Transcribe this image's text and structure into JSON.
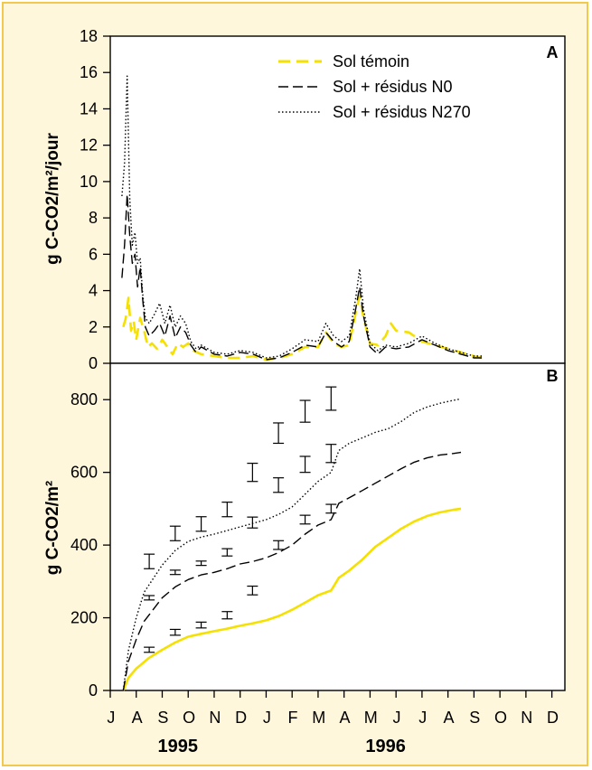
{
  "chart_data": [
    {
      "type": "line",
      "panel_label": "A",
      "ylabel": "g C-CO2/m²/jour",
      "ylim": [
        0,
        18
      ],
      "yticks": [
        0,
        2,
        4,
        6,
        8,
        10,
        12,
        14,
        16,
        18
      ],
      "legend": {
        "placement": "top-right"
      },
      "series": [
        {
          "name": "Sol témoin",
          "color": "#f5e000",
          "style": "dashed",
          "points": [
            [
              0.5,
              2.0
            ],
            [
              0.6,
              2.5
            ],
            [
              0.7,
              3.6
            ],
            [
              0.8,
              1.8
            ],
            [
              0.9,
              2.3
            ],
            [
              1.0,
              1.3
            ],
            [
              1.15,
              2.5
            ],
            [
              1.3,
              1.8
            ],
            [
              1.45,
              0.9
            ],
            [
              1.6,
              1.1
            ],
            [
              1.8,
              0.8
            ],
            [
              2.0,
              1.3
            ],
            [
              2.2,
              0.9
            ],
            [
              2.4,
              0.5
            ],
            [
              2.6,
              1.1
            ],
            [
              2.8,
              0.9
            ],
            [
              3.0,
              1.1
            ],
            [
              3.2,
              0.7
            ],
            [
              3.5,
              0.5
            ],
            [
              4.0,
              0.4
            ],
            [
              4.5,
              0.3
            ],
            [
              5.0,
              0.3
            ],
            [
              5.5,
              0.4
            ],
            [
              6.0,
              0.2
            ],
            [
              6.5,
              0.3
            ],
            [
              7.0,
              0.5
            ],
            [
              7.5,
              0.9
            ],
            [
              8.0,
              0.9
            ],
            [
              8.3,
              1.7
            ],
            [
              8.6,
              1.1
            ],
            [
              8.9,
              0.9
            ],
            [
              9.2,
              1.0
            ],
            [
              9.45,
              2.8
            ],
            [
              9.6,
              3.7
            ],
            [
              9.75,
              2.5
            ],
            [
              10.0,
              1.1
            ],
            [
              10.3,
              1.0
            ],
            [
              10.6,
              1.5
            ],
            [
              10.8,
              2.2
            ],
            [
              11.0,
              1.8
            ],
            [
              11.5,
              1.7
            ],
            [
              12.0,
              1.2
            ],
            [
              12.5,
              1.0
            ],
            [
              13.0,
              0.8
            ],
            [
              13.5,
              0.6
            ],
            [
              14.0,
              0.4
            ],
            [
              14.3,
              0.3
            ]
          ]
        },
        {
          "name": "Sol + résidus N0",
          "color": "#000000",
          "style": "dashed",
          "points": [
            [
              0.45,
              4.7
            ],
            [
              0.55,
              6.5
            ],
            [
              0.65,
              9.3
            ],
            [
              0.75,
              7.0
            ],
            [
              0.85,
              5.5
            ],
            [
              0.95,
              6.0
            ],
            [
              1.05,
              4.2
            ],
            [
              1.15,
              5.3
            ],
            [
              1.25,
              3.5
            ],
            [
              1.35,
              2.0
            ],
            [
              1.5,
              1.5
            ],
            [
              1.7,
              1.8
            ],
            [
              1.9,
              2.2
            ],
            [
              2.1,
              1.5
            ],
            [
              2.3,
              2.6
            ],
            [
              2.5,
              1.4
            ],
            [
              2.7,
              2.0
            ],
            [
              2.9,
              1.7
            ],
            [
              3.1,
              1.0
            ],
            [
              3.3,
              0.6
            ],
            [
              3.5,
              0.9
            ],
            [
              4.0,
              0.5
            ],
            [
              4.5,
              0.4
            ],
            [
              5.0,
              0.6
            ],
            [
              5.5,
              0.5
            ],
            [
              6.0,
              0.2
            ],
            [
              6.5,
              0.3
            ],
            [
              7.0,
              0.6
            ],
            [
              7.5,
              1.0
            ],
            [
              8.0,
              0.9
            ],
            [
              8.3,
              1.7
            ],
            [
              8.6,
              1.2
            ],
            [
              8.9,
              0.9
            ],
            [
              9.2,
              1.2
            ],
            [
              9.45,
              3.0
            ],
            [
              9.6,
              4.2
            ],
            [
              9.75,
              2.6
            ],
            [
              10.0,
              0.9
            ],
            [
              10.3,
              0.5
            ],
            [
              10.6,
              0.9
            ],
            [
              11.0,
              0.8
            ],
            [
              11.5,
              0.9
            ],
            [
              12.0,
              1.3
            ],
            [
              12.5,
              1.0
            ],
            [
              13.0,
              0.7
            ],
            [
              13.5,
              0.5
            ],
            [
              14.0,
              0.3
            ],
            [
              14.3,
              0.3
            ]
          ]
        },
        {
          "name": "Sol + résidus N270",
          "color": "#000000",
          "style": "dotted",
          "points": [
            [
              0.45,
              9.2
            ],
            [
              0.55,
              11.0
            ],
            [
              0.65,
              15.8
            ],
            [
              0.75,
              9.0
            ],
            [
              0.85,
              6.5
            ],
            [
              0.95,
              7.2
            ],
            [
              1.05,
              5.5
            ],
            [
              1.15,
              5.8
            ],
            [
              1.25,
              3.8
            ],
            [
              1.35,
              2.5
            ],
            [
              1.5,
              2.2
            ],
            [
              1.7,
              2.7
            ],
            [
              1.9,
              3.3
            ],
            [
              2.1,
              2.2
            ],
            [
              2.3,
              3.2
            ],
            [
              2.5,
              2.0
            ],
            [
              2.7,
              2.6
            ],
            [
              2.9,
              2.2
            ],
            [
              3.1,
              1.2
            ],
            [
              3.3,
              0.8
            ],
            [
              3.5,
              1.0
            ],
            [
              4.0,
              0.6
            ],
            [
              4.5,
              0.5
            ],
            [
              5.0,
              0.7
            ],
            [
              5.5,
              0.6
            ],
            [
              6.0,
              0.3
            ],
            [
              6.5,
              0.4
            ],
            [
              7.0,
              0.8
            ],
            [
              7.5,
              1.3
            ],
            [
              8.0,
              1.2
            ],
            [
              8.3,
              2.2
            ],
            [
              8.6,
              1.5
            ],
            [
              8.9,
              1.2
            ],
            [
              9.2,
              1.5
            ],
            [
              9.45,
              3.6
            ],
            [
              9.6,
              5.2
            ],
            [
              9.75,
              3.0
            ],
            [
              10.0,
              1.1
            ],
            [
              10.3,
              0.7
            ],
            [
              10.6,
              1.0
            ],
            [
              11.0,
              0.9
            ],
            [
              11.5,
              1.1
            ],
            [
              12.0,
              1.5
            ],
            [
              12.5,
              1.1
            ],
            [
              13.0,
              0.8
            ],
            [
              13.5,
              0.6
            ],
            [
              14.0,
              0.4
            ],
            [
              14.3,
              0.4
            ]
          ]
        }
      ]
    },
    {
      "type": "line",
      "panel_label": "B",
      "ylabel": "g C-CO2/m²",
      "ylim": [
        0,
        900
      ],
      "yticks": [
        0,
        200,
        400,
        600,
        800
      ],
      "xtick_labels": [
        "J",
        "A",
        "S",
        "O",
        "N",
        "D",
        "J",
        "F",
        "M",
        "A",
        "M",
        "J",
        "J",
        "A",
        "S",
        "O",
        "N",
        "D"
      ],
      "year_labels": [
        {
          "label": "1995",
          "month_index": 3.5
        },
        {
          "label": "1996",
          "month_index": 11.5
        }
      ],
      "series": [
        {
          "name": "Sol témoin",
          "color": "#f5e000",
          "style": "solid",
          "points": [
            [
              0.5,
              0
            ],
            [
              0.7,
              35
            ],
            [
              1.0,
              60
            ],
            [
              1.5,
              90
            ],
            [
              2.0,
              112
            ],
            [
              2.5,
              132
            ],
            [
              3.0,
              148
            ],
            [
              3.5,
              156
            ],
            [
              4.0,
              163
            ],
            [
              4.5,
              170
            ],
            [
              5.0,
              178
            ],
            [
              5.5,
              185
            ],
            [
              6.0,
              193
            ],
            [
              6.5,
              205
            ],
            [
              7.0,
              222
            ],
            [
              7.5,
              242
            ],
            [
              8.0,
              262
            ],
            [
              8.5,
              275
            ],
            [
              8.8,
              310
            ],
            [
              9.2,
              330
            ],
            [
              9.7,
              360
            ],
            [
              10.2,
              395
            ],
            [
              10.7,
              420
            ],
            [
              11.2,
              445
            ],
            [
              11.7,
              465
            ],
            [
              12.2,
              480
            ],
            [
              12.7,
              490
            ],
            [
              13.2,
              497
            ],
            [
              13.5,
              500
            ]
          ],
          "error_bars": [
            [
              2.0,
              112,
              7
            ],
            [
              4.0,
              160,
              8
            ],
            [
              6.0,
              180,
              8
            ],
            [
              8.0,
              207,
              10
            ],
            [
              9.95,
              275,
              12
            ],
            [
              11.95,
              400,
              12
            ],
            [
              14.0,
              470,
              12
            ],
            [
              16.0,
              500,
              12
            ]
          ]
        },
        {
          "name": "Sol + résidus N0",
          "color": "#000000",
          "style": "dashed",
          "points": [
            [
              0.5,
              0
            ],
            [
              0.7,
              80
            ],
            [
              1.0,
              140
            ],
            [
              1.3,
              190
            ],
            [
              2.0,
              255
            ],
            [
              2.5,
              285
            ],
            [
              3.0,
              305
            ],
            [
              3.5,
              318
            ],
            [
              4.0,
              325
            ],
            [
              4.5,
              335
            ],
            [
              5.0,
              348
            ],
            [
              5.5,
              355
            ],
            [
              6.0,
              365
            ],
            [
              6.5,
              380
            ],
            [
              7.0,
              400
            ],
            [
              7.5,
              430
            ],
            [
              8.0,
              455
            ],
            [
              8.5,
              470
            ],
            [
              8.8,
              515
            ],
            [
              9.2,
              530
            ],
            [
              9.7,
              550
            ],
            [
              10.2,
              570
            ],
            [
              10.7,
              590
            ],
            [
              11.2,
              610
            ],
            [
              11.7,
              628
            ],
            [
              12.2,
              640
            ],
            [
              12.7,
              648
            ],
            [
              13.2,
              652
            ],
            [
              13.5,
              655
            ]
          ],
          "error_bars": [
            [
              2.0,
              255,
              6
            ],
            [
              4.0,
              325,
              6
            ],
            [
              6.0,
              350,
              6
            ],
            [
              8.0,
              380,
              10
            ],
            [
              9.95,
              462,
              15
            ],
            [
              11.95,
              565,
              20
            ],
            [
              14.0,
              622,
              22
            ],
            [
              16.0,
              652,
              25
            ]
          ]
        },
        {
          "name": "Sol + résidus N270",
          "color": "#000000",
          "style": "dotted",
          "points": [
            [
              0.5,
              0
            ],
            [
              0.7,
              110
            ],
            [
              1.0,
              200
            ],
            [
              1.3,
              270
            ],
            [
              2.0,
              345
            ],
            [
              2.5,
              385
            ],
            [
              3.0,
              410
            ],
            [
              3.5,
              422
            ],
            [
              4.0,
              430
            ],
            [
              4.5,
              440
            ],
            [
              5.0,
              450
            ],
            [
              5.5,
              460
            ],
            [
              6.0,
              470
            ],
            [
              6.5,
              485
            ],
            [
              7.0,
              505
            ],
            [
              7.5,
              540
            ],
            [
              8.0,
              575
            ],
            [
              8.5,
              600
            ],
            [
              8.8,
              660
            ],
            [
              9.2,
              680
            ],
            [
              9.7,
              695
            ],
            [
              10.2,
              710
            ],
            [
              10.7,
              720
            ],
            [
              11.2,
              740
            ],
            [
              11.7,
              765
            ],
            [
              12.2,
              780
            ],
            [
              12.7,
              790
            ],
            [
              13.2,
              798
            ],
            [
              13.5,
              802
            ]
          ],
          "error_bars": [
            [
              2.0,
              355,
              20
            ],
            [
              4.0,
              432,
              20
            ],
            [
              6.0,
              458,
              20
            ],
            [
              8.0,
              498,
              20
            ],
            [
              9.95,
              600,
              25
            ],
            [
              11.95,
              708,
              28
            ],
            [
              14.0,
              768,
              30
            ],
            [
              16.0,
              803,
              32
            ]
          ]
        }
      ]
    }
  ]
}
